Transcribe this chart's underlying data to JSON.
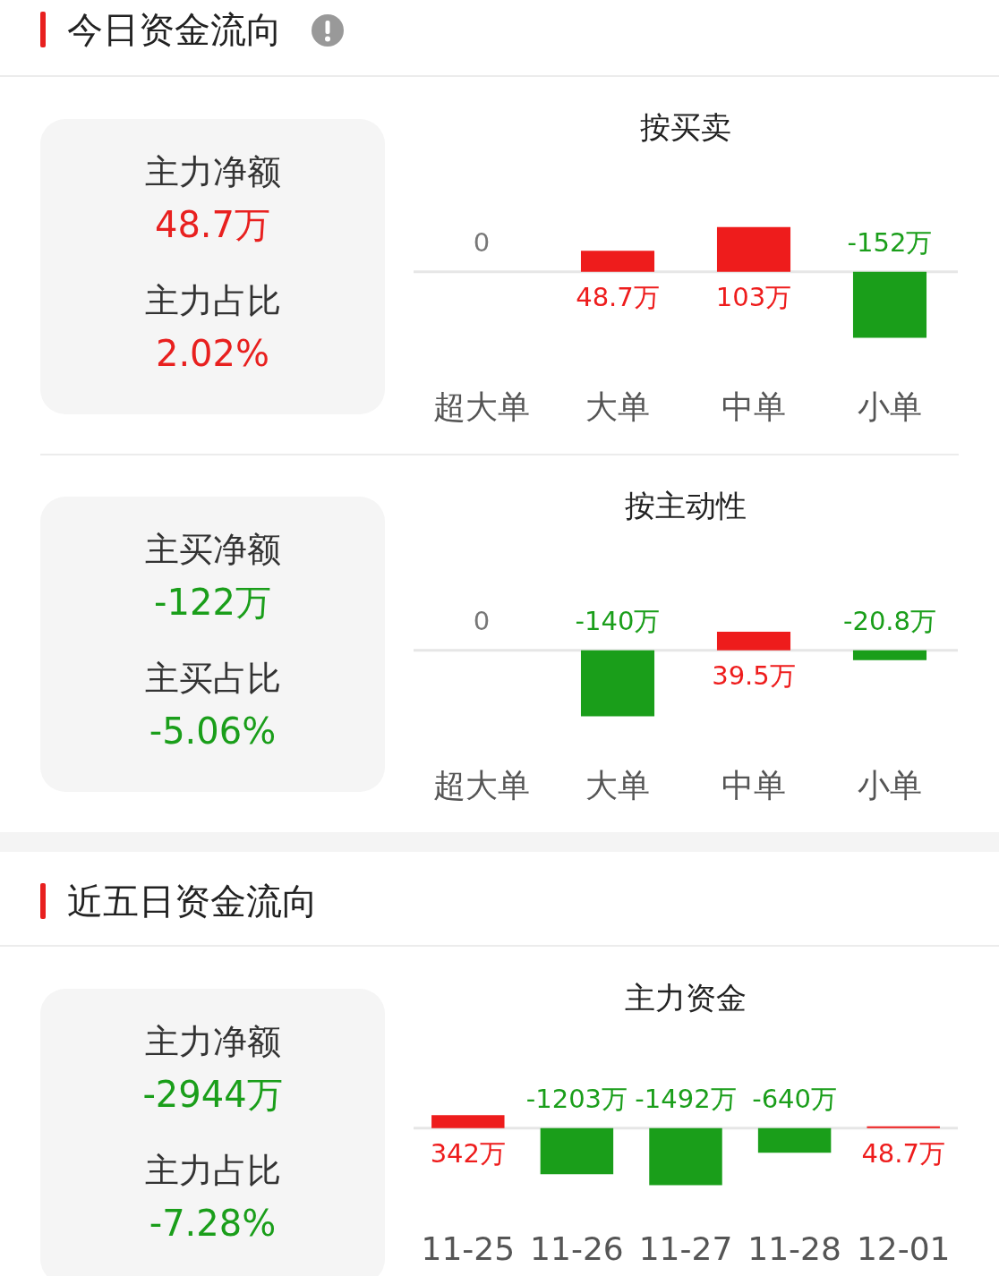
{
  "chart_data": [
    {
      "type": "other",
      "title": "今日资金流向",
      "annotations": [
        "主力净额",
        "48.7万",
        "主力占比",
        "2.02%"
      ],
      "colors": [
        "#333333",
        "#e8201f",
        "#333333",
        "#e8201f"
      ]
    },
    {
      "type": "bar",
      "title": "按买卖",
      "categories": [
        "超大单",
        "大单",
        "中单",
        "小单"
      ],
      "values": [
        0,
        48.7,
        103,
        -152
      ],
      "value_labels": [
        "0",
        "48.7万",
        "103万",
        "-152万"
      ],
      "colors": [
        "#777777",
        "#ee1c1c",
        "#ee1c1c",
        "#1a9e1a"
      ]
    },
    {
      "type": "other",
      "annotations": [
        "主买净额",
        "-122万",
        "主买占比",
        "-5.06%"
      ],
      "colors": [
        "#333333",
        "#1a9e1a",
        "#333333",
        "#1a9e1a"
      ]
    },
    {
      "type": "bar",
      "title": "按主动性",
      "categories": [
        "超大单",
        "大单",
        "中单",
        "小单"
      ],
      "values": [
        0,
        -140,
        39.5,
        -20.8
      ],
      "value_labels": [
        "0",
        "-140万",
        "39.5万",
        "-20.8万"
      ],
      "colors": [
        "#777777",
        "#1a9e1a",
        "#ee1c1c",
        "#1a9e1a"
      ]
    },
    {
      "type": "other",
      "title": "近五日资金流向",
      "annotations": [
        "主力净额",
        "-2944万",
        "主力占比",
        "-7.28%"
      ],
      "colors": [
        "#333333",
        "#1a9e1a",
        "#333333",
        "#1a9e1a"
      ]
    },
    {
      "type": "bar",
      "title": "主力资金",
      "categories": [
        "11-25",
        "11-26",
        "11-27",
        "11-28",
        "12-01"
      ],
      "values": [
        342,
        -1203,
        -1492,
        -640,
        48.7
      ],
      "value_labels": [
        "342万",
        "-1203万",
        "-1492万",
        "-640万",
        "48.7万"
      ],
      "colors": [
        "#ee1c1c",
        "#1a9e1a",
        "#1a9e1a",
        "#1a9e1a",
        "#ee1c1c"
      ]
    }
  ]
}
